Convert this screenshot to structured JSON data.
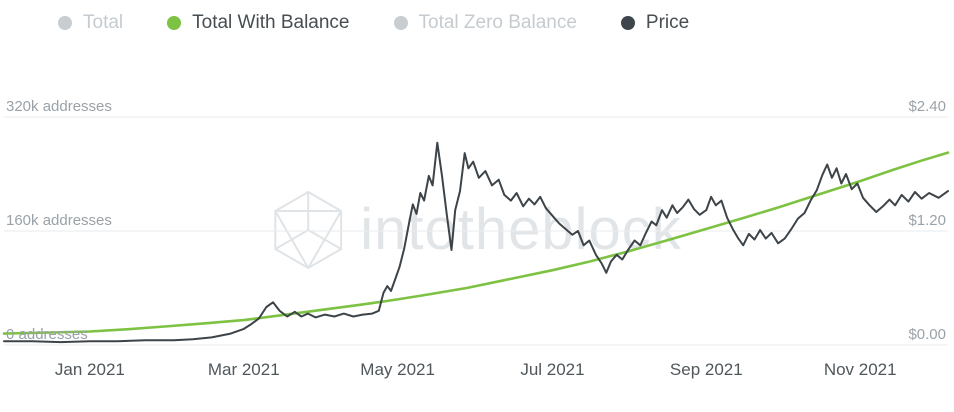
{
  "legend": {
    "items": [
      {
        "label": "Total",
        "color": "#c8cdd1",
        "text_color": "#c5cbcf",
        "active": false
      },
      {
        "label": "Total With Balance",
        "color": "#7dc242",
        "text_color": "#474e52",
        "active": true
      },
      {
        "label": "Total Zero Balance",
        "color": "#c8cdd1",
        "text_color": "#c5cbcf",
        "active": false
      },
      {
        "label": "Price",
        "color": "#3e464b",
        "text_color": "#474e52",
        "active": true
      }
    ]
  },
  "watermark": {
    "text": "intotheblock"
  },
  "chart_data": {
    "type": "line",
    "title": "",
    "grid": "horizontal",
    "legend_position": "top",
    "x_ticks": [
      {
        "t": 0.091,
        "label": "Jan 2021"
      },
      {
        "t": 0.254,
        "label": "Mar 2021"
      },
      {
        "t": 0.417,
        "label": "May 2021"
      },
      {
        "t": 0.581,
        "label": "Jul 2021"
      },
      {
        "t": 0.744,
        "label": "Sep 2021"
      },
      {
        "t": 0.907,
        "label": "Nov 2021"
      }
    ],
    "y_left": {
      "unit": "addresses",
      "max": 320,
      "values_k": [
        320,
        160,
        0
      ],
      "labels": [
        "320k addresses",
        "160k addresses",
        "0 addresses"
      ]
    },
    "y_right": {
      "unit": "USD",
      "max": 2.4,
      "values": [
        2.4,
        1.2,
        0.0
      ],
      "labels": [
        "$2.40",
        "$1.20",
        "$0.00"
      ]
    },
    "series": [
      {
        "name": "Total With Balance",
        "axis": "left",
        "color": "#7dc242",
        "width": 2.6,
        "points": [
          [
            0,
            16
          ],
          [
            0.05,
            17.5
          ],
          [
            0.091,
            19
          ],
          [
            0.13,
            22
          ],
          [
            0.17,
            26
          ],
          [
            0.21,
            30
          ],
          [
            0.254,
            35
          ],
          [
            0.3,
            43
          ],
          [
            0.34,
            50
          ],
          [
            0.38,
            57
          ],
          [
            0.402,
            61
          ],
          [
            0.417,
            64
          ],
          [
            0.45,
            71
          ],
          [
            0.49,
            80
          ],
          [
            0.53,
            91
          ],
          [
            0.581,
            105
          ],
          [
            0.62,
            117
          ],
          [
            0.66,
            131
          ],
          [
            0.7,
            146
          ],
          [
            0.744,
            163
          ],
          [
            0.78,
            177
          ],
          [
            0.82,
            193
          ],
          [
            0.86,
            210
          ],
          [
            0.907,
            230
          ],
          [
            0.94,
            245
          ],
          [
            0.97,
            258
          ],
          [
            1,
            270
          ]
        ]
      },
      {
        "name": "Price",
        "axis": "right",
        "color": "#3d4449",
        "width": 2,
        "points": [
          [
            0,
            0.04
          ],
          [
            0.03,
            0.04
          ],
          [
            0.06,
            0.03
          ],
          [
            0.091,
            0.04
          ],
          [
            0.12,
            0.04
          ],
          [
            0.15,
            0.05
          ],
          [
            0.18,
            0.05
          ],
          [
            0.2,
            0.06
          ],
          [
            0.22,
            0.08
          ],
          [
            0.24,
            0.12
          ],
          [
            0.254,
            0.17
          ],
          [
            0.262,
            0.22
          ],
          [
            0.27,
            0.28
          ],
          [
            0.278,
            0.4
          ],
          [
            0.285,
            0.45
          ],
          [
            0.292,
            0.36
          ],
          [
            0.3,
            0.3
          ],
          [
            0.308,
            0.35
          ],
          [
            0.315,
            0.3
          ],
          [
            0.322,
            0.33
          ],
          [
            0.33,
            0.29
          ],
          [
            0.34,
            0.32
          ],
          [
            0.35,
            0.3
          ],
          [
            0.36,
            0.33
          ],
          [
            0.37,
            0.3
          ],
          [
            0.38,
            0.32
          ],
          [
            0.39,
            0.33
          ],
          [
            0.397,
            0.36
          ],
          [
            0.402,
            0.55
          ],
          [
            0.406,
            0.62
          ],
          [
            0.41,
            0.57
          ],
          [
            0.414,
            0.68
          ],
          [
            0.419,
            0.82
          ],
          [
            0.424,
            1.02
          ],
          [
            0.429,
            1.28
          ],
          [
            0.433,
            1.48
          ],
          [
            0.437,
            1.38
          ],
          [
            0.441,
            1.6
          ],
          [
            0.445,
            1.52
          ],
          [
            0.45,
            1.78
          ],
          [
            0.454,
            1.68
          ],
          [
            0.459,
            2.13
          ],
          [
            0.464,
            1.78
          ],
          [
            0.469,
            1.38
          ],
          [
            0.474,
            1.0
          ],
          [
            0.478,
            1.42
          ],
          [
            0.483,
            1.62
          ],
          [
            0.488,
            2.02
          ],
          [
            0.492,
            1.86
          ],
          [
            0.497,
            1.93
          ],
          [
            0.503,
            1.76
          ],
          [
            0.51,
            1.83
          ],
          [
            0.517,
            1.68
          ],
          [
            0.524,
            1.74
          ],
          [
            0.53,
            1.58
          ],
          [
            0.537,
            1.52
          ],
          [
            0.543,
            1.6
          ],
          [
            0.55,
            1.46
          ],
          [
            0.556,
            1.54
          ],
          [
            0.562,
            1.48
          ],
          [
            0.568,
            1.56
          ],
          [
            0.574,
            1.44
          ],
          [
            0.581,
            1.36
          ],
          [
            0.588,
            1.28
          ],
          [
            0.595,
            1.22
          ],
          [
            0.602,
            1.16
          ],
          [
            0.608,
            1.2
          ],
          [
            0.614,
            1.05
          ],
          [
            0.62,
            1.1
          ],
          [
            0.627,
            0.95
          ],
          [
            0.633,
            0.86
          ],
          [
            0.638,
            0.76
          ],
          [
            0.643,
            0.88
          ],
          [
            0.649,
            0.95
          ],
          [
            0.655,
            0.9
          ],
          [
            0.661,
            1.0
          ],
          [
            0.668,
            1.1
          ],
          [
            0.674,
            1.05
          ],
          [
            0.68,
            1.18
          ],
          [
            0.686,
            1.3
          ],
          [
            0.691,
            1.26
          ],
          [
            0.697,
            1.42
          ],
          [
            0.702,
            1.34
          ],
          [
            0.708,
            1.47
          ],
          [
            0.713,
            1.39
          ],
          [
            0.719,
            1.45
          ],
          [
            0.725,
            1.53
          ],
          [
            0.731,
            1.43
          ],
          [
            0.737,
            1.37
          ],
          [
            0.744,
            1.42
          ],
          [
            0.749,
            1.56
          ],
          [
            0.754,
            1.47
          ],
          [
            0.76,
            1.52
          ],
          [
            0.766,
            1.34
          ],
          [
            0.772,
            1.22
          ],
          [
            0.778,
            1.12
          ],
          [
            0.783,
            1.05
          ],
          [
            0.789,
            1.17
          ],
          [
            0.795,
            1.11
          ],
          [
            0.801,
            1.21
          ],
          [
            0.807,
            1.12
          ],
          [
            0.813,
            1.18
          ],
          [
            0.82,
            1.07
          ],
          [
            0.827,
            1.12
          ],
          [
            0.834,
            1.22
          ],
          [
            0.841,
            1.33
          ],
          [
            0.848,
            1.39
          ],
          [
            0.855,
            1.53
          ],
          [
            0.861,
            1.63
          ],
          [
            0.867,
            1.79
          ],
          [
            0.872,
            1.9
          ],
          [
            0.877,
            1.76
          ],
          [
            0.882,
            1.86
          ],
          [
            0.887,
            1.7
          ],
          [
            0.892,
            1.8
          ],
          [
            0.898,
            1.64
          ],
          [
            0.904,
            1.7
          ],
          [
            0.91,
            1.55
          ],
          [
            0.917,
            1.47
          ],
          [
            0.924,
            1.4
          ],
          [
            0.931,
            1.46
          ],
          [
            0.938,
            1.53
          ],
          [
            0.944,
            1.47
          ],
          [
            0.951,
            1.58
          ],
          [
            0.958,
            1.51
          ],
          [
            0.965,
            1.61
          ],
          [
            0.972,
            1.54
          ],
          [
            0.98,
            1.6
          ],
          [
            0.99,
            1.55
          ],
          [
            1,
            1.62
          ]
        ]
      }
    ]
  }
}
